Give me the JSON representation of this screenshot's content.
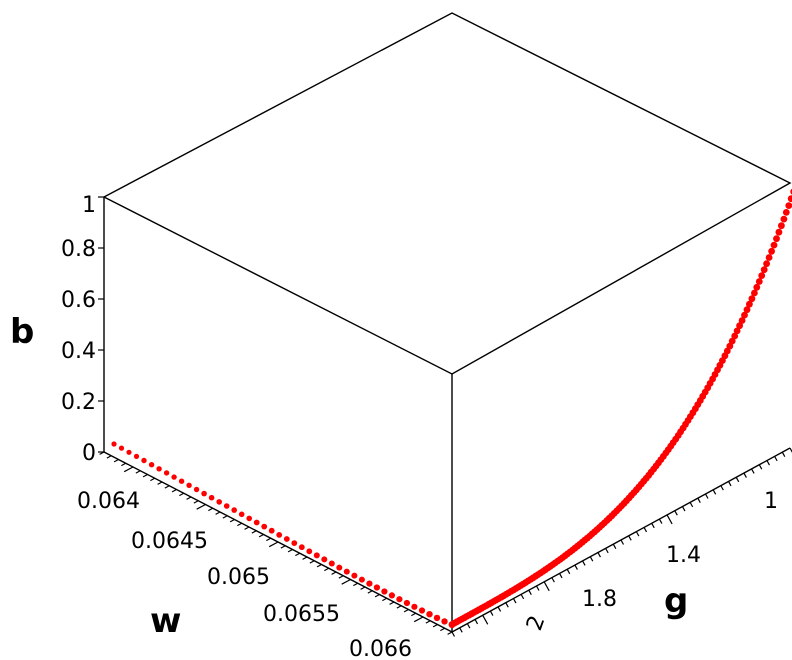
{
  "chart_data": {
    "type": "scatter",
    "projection": "3d-box",
    "title": "",
    "axes": {
      "x": {
        "label": "w",
        "range": [
          0.0638,
          0.0662
        ],
        "tick_labels": [
          "0.064",
          "0.0645",
          "0.065",
          "0.0655",
          "0.066"
        ],
        "tick_values": [
          0.064,
          0.0645,
          0.065,
          0.0655,
          0.066
        ]
      },
      "y": {
        "label": "g",
        "range": [
          1.0,
          2.1
        ],
        "tick_labels": [
          "1",
          "1.4",
          "1.8",
          "2"
        ],
        "tick_values": [
          1.0,
          1.4,
          1.8,
          2.0
        ]
      },
      "z": {
        "label": "b",
        "range": [
          0,
          1
        ],
        "tick_labels": [
          "0",
          "0.2",
          "0.4",
          "0.6",
          "0.8",
          "1"
        ],
        "tick_values": [
          0,
          0.2,
          0.4,
          0.6,
          0.8,
          1.0
        ]
      }
    },
    "series": [
      {
        "color": "#ff0000",
        "description_points": "curve along w = 0.066 edge rising in b",
        "points": [
          {
            "g": 2.1,
            "b": 0.0
          },
          {
            "g": 2.0,
            "b": 0.0
          },
          {
            "g": 1.9,
            "b": 0.005
          },
          {
            "g": 1.8,
            "b": 0.01
          },
          {
            "g": 1.7,
            "b": 0.015
          },
          {
            "g": 1.6,
            "b": 0.02
          },
          {
            "g": 1.5,
            "b": 0.03
          },
          {
            "g": 1.4,
            "b": 0.05
          },
          {
            "g": 1.3,
            "b": 0.08
          },
          {
            "g": 1.2,
            "b": 0.12
          },
          {
            "g": 1.1,
            "b": 0.2
          },
          {
            "g": 1.05,
            "b": 0.28
          },
          {
            "g": 1.02,
            "b": 0.4
          },
          {
            "g": 1.01,
            "b": 0.55
          },
          {
            "g": 1.0,
            "b": 0.7
          },
          {
            "g": 0.99,
            "b": 0.88
          },
          {
            "g": 0.98,
            "b": 1.0
          }
        ]
      }
    ],
    "colors": {
      "series": "#ff0000",
      "box": "#000000",
      "background": "#ffffff"
    }
  }
}
